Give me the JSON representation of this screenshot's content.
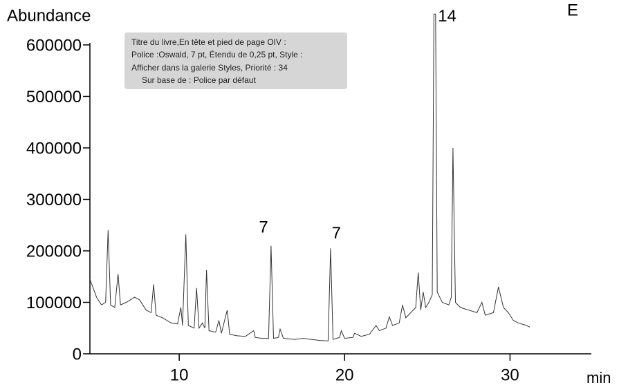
{
  "chart_data": {
    "type": "line",
    "title": "E",
    "y_label": "Abundance",
    "x_label": "min",
    "x": [
      4.6,
      5.0,
      5.3,
      5.55,
      5.7,
      5.85,
      6.1,
      6.3,
      6.45,
      6.8,
      7.3,
      7.6,
      8.0,
      8.3,
      8.45,
      8.6,
      9.0,
      9.5,
      9.9,
      10.1,
      10.2,
      10.4,
      10.55,
      10.9,
      11.05,
      11.2,
      11.4,
      11.55,
      11.65,
      11.8,
      12.2,
      12.4,
      12.55,
      12.9,
      13.05,
      13.5,
      14.0,
      14.5,
      14.6,
      15.0,
      15.4,
      15.55,
      15.7,
      16.0,
      16.1,
      16.3,
      17.0,
      17.5,
      18.0,
      18.5,
      19.0,
      19.15,
      19.3,
      19.7,
      19.8,
      20.0,
      20.5,
      20.6,
      21.0,
      21.5,
      21.9,
      22.1,
      22.5,
      22.7,
      22.9,
      23.3,
      23.5,
      23.7,
      24.0,
      24.3,
      24.45,
      24.6,
      24.75,
      24.9,
      25.1,
      25.3,
      25.4,
      25.5,
      25.6,
      25.9,
      26.3,
      26.45,
      26.55,
      26.7,
      27.0,
      27.5,
      28.0,
      28.3,
      28.5,
      29.0,
      29.3,
      29.6,
      29.9,
      30.2,
      30.5,
      31.0,
      31.2
    ],
    "series": [
      {
        "color": "#333333",
        "values": [
          145000,
          110000,
          95000,
          100000,
          240000,
          95000,
          90000,
          155000,
          95000,
          100000,
          110000,
          105000,
          85000,
          80000,
          135000,
          75000,
          70000,
          60000,
          58000,
          90000,
          55000,
          232000,
          55000,
          50000,
          128000,
          50000,
          60000,
          50000,
          163000,
          45000,
          42000,
          65000,
          40000,
          85000,
          38000,
          35000,
          34000,
          45000,
          32000,
          30000,
          30000,
          210000,
          30000,
          32000,
          48000,
          30000,
          28000,
          30000,
          28000,
          26000,
          25000,
          205000,
          28000,
          32000,
          45000,
          30000,
          32000,
          40000,
          34000,
          38000,
          55000,
          45000,
          50000,
          72000,
          55000,
          60000,
          95000,
          70000,
          80000,
          90000,
          158000,
          85000,
          120000,
          90000,
          100000,
          115000,
          660000,
          660000,
          120000,
          100000,
          95000,
          110000,
          400000,
          100000,
          90000,
          85000,
          80000,
          100000,
          75000,
          80000,
          130000,
          90000,
          80000,
          65000,
          60000,
          55000,
          52000
        ]
      }
    ],
    "annotations": [
      {
        "text": "14",
        "x": 26.2,
        "y": 654000
      },
      {
        "text": "7",
        "x": 15.1,
        "y": 244000
      },
      {
        "text": "7",
        "x": 19.5,
        "y": 233000
      }
    ],
    "xlim": [
      4.6,
      35
    ],
    "ylim": [
      0,
      600000
    ],
    "xticks": [
      10,
      20,
      30
    ],
    "yticks": [
      0,
      100000,
      200000,
      300000,
      400000,
      500000,
      600000
    ],
    "tooltip": [
      "Titre du livre,En tête et pied de page OIV :",
      "Police :Oswald, 7 pt, Étendu de 0,25 pt, Style :",
      "Afficher dans la galerie Styles, Priorité : 34",
      "Sur base de : Police par défaut"
    ]
  }
}
